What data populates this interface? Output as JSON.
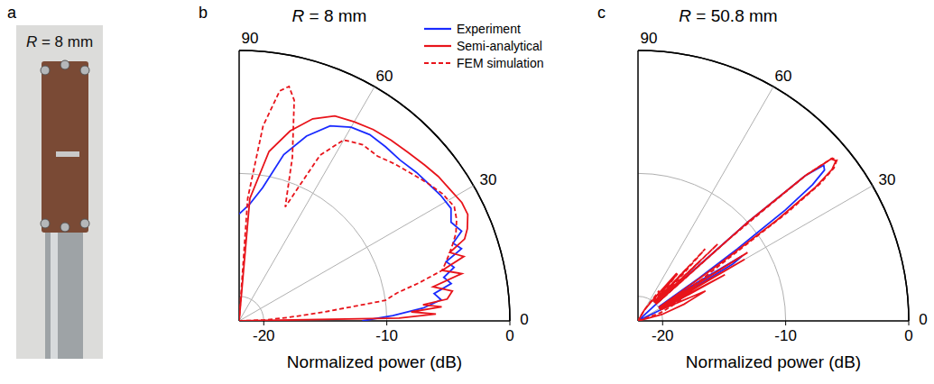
{
  "chart_data": [
    {
      "type": "photo",
      "label": "a",
      "title": "R = 8 mm"
    },
    {
      "type": "polar",
      "label": "b",
      "title": "R = 8 mm",
      "axis_label": "Normalized power (dB)",
      "xlim": [
        0,
        90
      ],
      "xticks": [
        0,
        30,
        60,
        90
      ],
      "ylim": [
        -22,
        0
      ],
      "yticks": [
        -20,
        -10,
        0
      ],
      "grid": true,
      "legend": "upper right",
      "series": [
        {
          "name": "Experiment",
          "color": "#1a2bff",
          "line_style": "solid",
          "x": [
            0,
            2,
            4,
            6,
            8,
            10,
            12,
            14,
            16,
            18,
            20,
            22,
            25,
            28,
            32,
            36,
            40,
            45,
            50,
            55,
            60,
            65,
            70,
            75,
            80,
            85,
            90
          ],
          "values": [
            -12,
            -9.5,
            -7,
            -5.5,
            -6,
            -4.5,
            -5,
            -4,
            -4.5,
            -3,
            -3.5,
            -2.5,
            -3,
            -2.5,
            -2.7,
            -3,
            -3.2,
            -3.5,
            -3.5,
            -3.5,
            -3.8,
            -4.5,
            -6,
            -8,
            -11,
            -12.5,
            -13.3
          ]
        },
        {
          "name": "Semi-analytical",
          "color": "#e8141b",
          "line_style": "solid",
          "x": [
            0,
            1,
            2,
            3,
            4,
            5,
            6,
            8,
            10,
            12,
            14,
            16,
            18,
            20,
            22,
            25,
            28,
            32,
            36,
            40,
            45,
            50,
            55,
            60,
            65,
            70,
            75,
            80,
            85,
            90
          ],
          "values": [
            -22,
            -9,
            -6,
            -8,
            -5.5,
            -7,
            -5,
            -4.5,
            -6,
            -3.5,
            -5,
            -3,
            -4,
            -2.5,
            -2,
            -1.5,
            -1.5,
            -1.8,
            -2,
            -2.3,
            -2.6,
            -2.8,
            -3,
            -3.3,
            -3.6,
            -4.5,
            -6,
            -8,
            -12,
            -22
          ]
        },
        {
          "name": "FEM simulation",
          "color": "#e8141b",
          "line_style": "dashed",
          "x": [
            0,
            2,
            4,
            6,
            8,
            10,
            12,
            14,
            16,
            18,
            20,
            22,
            25,
            28,
            32,
            36,
            40,
            45,
            50,
            55,
            60,
            64,
            68,
            72,
            76,
            78,
            80,
            83,
            86,
            90
          ],
          "values": [
            -22,
            -20,
            -18,
            -15,
            -10,
            -9,
            -7,
            -5,
            -4.5,
            -4,
            -3.5,
            -3,
            -2.5,
            -2.2,
            -2.5,
            -3,
            -3.5,
            -4,
            -4.5,
            -4.5,
            -5,
            -7,
            -12,
            -8,
            -3.5,
            -2.5,
            -3,
            -6,
            -12,
            -22
          ]
        }
      ]
    },
    {
      "type": "polar",
      "label": "c",
      "title": "R = 50.8 mm",
      "axis_label": "Normalized power (dB)",
      "xlim": [
        0,
        90
      ],
      "xticks": [
        0,
        30,
        60,
        90
      ],
      "ylim": [
        -22,
        0
      ],
      "yticks": [
        -20,
        -10,
        0
      ],
      "grid": true,
      "series": [
        {
          "color": "#1a2bff",
          "line_style": "solid",
          "x": [
            0,
            20,
            26,
            28,
            30,
            31,
            32,
            33,
            34,
            35,
            36,
            37,
            38,
            39,
            40,
            41,
            42,
            43,
            44,
            50,
            90
          ],
          "values": [
            -22,
            -22,
            -20,
            -17,
            -20,
            -13,
            -12,
            -16,
            -20,
            -16,
            -12,
            -7,
            -4,
            -2.5,
            -2.3,
            -4,
            -10,
            -18,
            -22,
            -22,
            -22
          ]
        },
        {
          "color": "#e8141b",
          "line_style": "solid",
          "x": [
            0,
            10,
            15,
            20,
            24,
            26,
            28,
            29,
            30,
            31,
            32,
            33,
            34,
            35,
            36,
            37,
            38,
            39,
            40,
            41,
            42,
            43,
            44,
            45,
            47,
            49,
            51,
            55,
            60,
            70,
            90
          ],
          "values": [
            -22,
            -22,
            -20,
            -18,
            -16,
            -20,
            -14,
            -20,
            -12,
            -20,
            -11.5,
            -20,
            -18,
            -14,
            -8,
            -4,
            -2,
            -1.3,
            -1.5,
            -4,
            -10,
            -20,
            -15,
            -20,
            -16,
            -20,
            -17,
            -20,
            -21,
            -22,
            -22
          ]
        },
        {
          "color": "#e8141b",
          "line_style": "dashed",
          "x": [
            0,
            10,
            20,
            26,
            30,
            33,
            35,
            36,
            37,
            38,
            39,
            40,
            41,
            42,
            43,
            44,
            45,
            46,
            47,
            48,
            50,
            52,
            55,
            60,
            90
          ],
          "values": [
            -22,
            -22,
            -20,
            -18,
            -20,
            -16,
            -12,
            -7,
            -3.5,
            -1.8,
            -1.2,
            -1.4,
            -4,
            -12,
            -20,
            -13,
            -20,
            -17,
            -14,
            -20,
            -17,
            -20,
            -19,
            -21,
            -22
          ]
        }
      ]
    }
  ]
}
